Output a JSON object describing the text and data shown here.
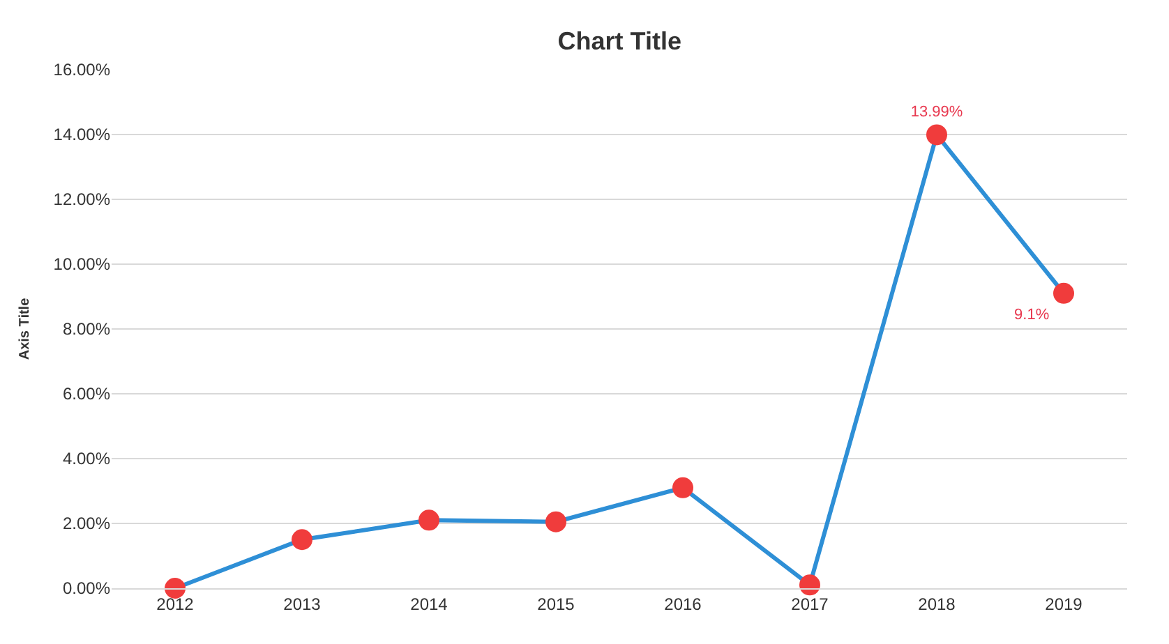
{
  "chart_data": {
    "type": "line",
    "title": "Chart Title",
    "ylabel": "Axis Title",
    "categories": [
      "2012",
      "2013",
      "2014",
      "2015",
      "2016",
      "2017",
      "2018",
      "2019"
    ],
    "series": [
      {
        "color": "#2e8fd6",
        "values": [
          0,
          1.5,
          2.1,
          2.05,
          3.1,
          0.1,
          13.99,
          9.1
        ],
        "value_labels": [
          null,
          null,
          null,
          null,
          null,
          null,
          "13.99%",
          "9.1%"
        ]
      }
    ],
    "ylim": [
      0,
      16
    ],
    "yticks": [
      {
        "value": 0,
        "label": "0.00%"
      },
      {
        "value": 2,
        "label": "2.00%"
      },
      {
        "value": 4,
        "label": "4.00%"
      },
      {
        "value": 6,
        "label": "6.00%"
      },
      {
        "value": 8,
        "label": "8.00%"
      },
      {
        "value": 10,
        "label": "10.00%"
      },
      {
        "value": 12,
        "label": "12.00%"
      },
      {
        "value": 14,
        "label": "14.00%"
      },
      {
        "value": 16,
        "label": "16.00%"
      }
    ],
    "grid": "y",
    "marker": "circle",
    "line_style": "solid",
    "legend": false
  }
}
